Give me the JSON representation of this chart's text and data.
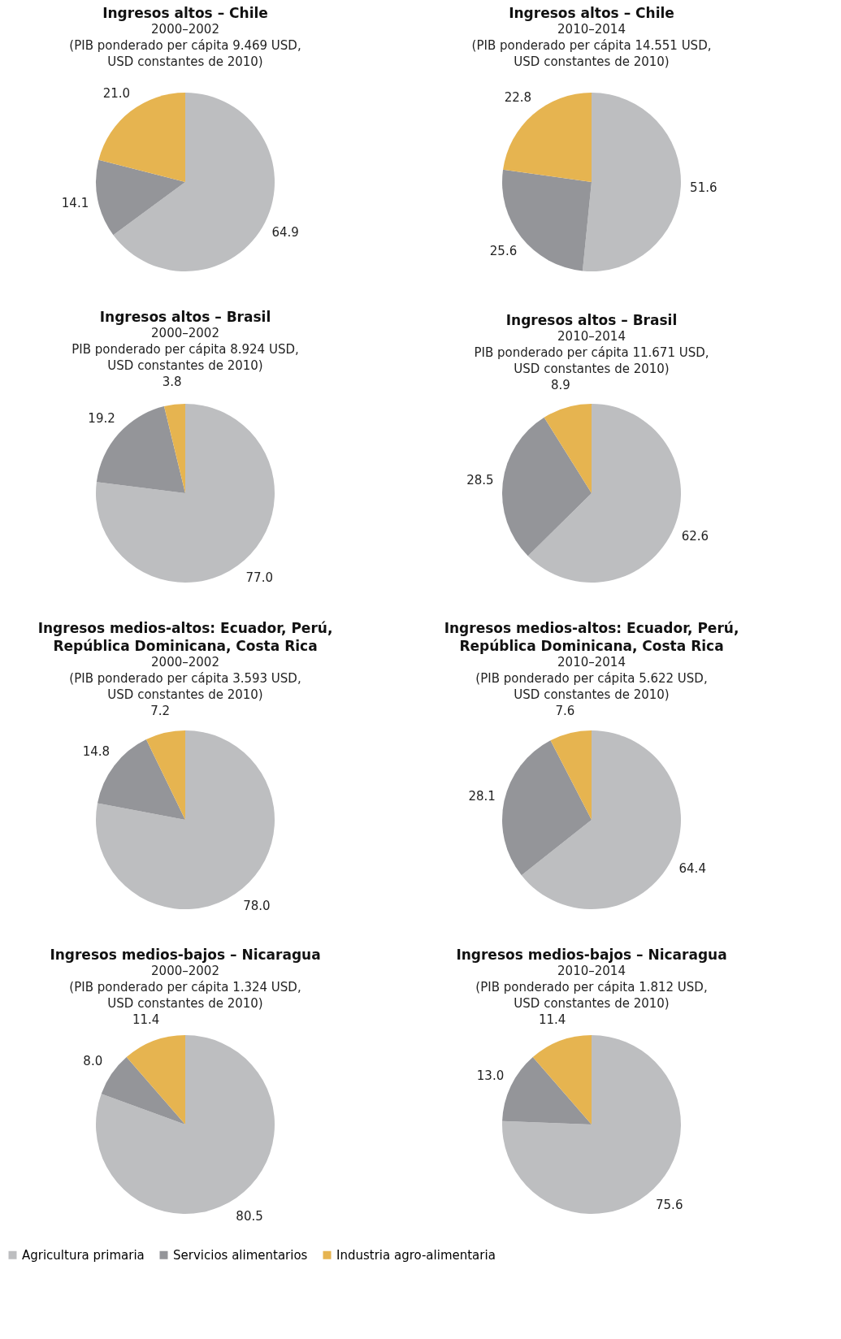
{
  "chart_data": [
    {
      "type": "pie",
      "title": "Ingresos altos – Chile",
      "subtitle": "2000–2002\n(PIB ponderado per cápita 9.469 USD,\nUSD constantes de 2010)",
      "categories": [
        "Agricultura primaria",
        "Servicios alimentarios",
        "Industria agro-alimentaria"
      ],
      "values": [
        64.9,
        14.1,
        21.0
      ],
      "value_labels": [
        "64.9",
        "14.1",
        "21.0"
      ],
      "colors": [
        "#bdbec0",
        "#949599",
        "#e6b450"
      ],
      "data_labels": true,
      "legend": "bottom"
    },
    {
      "type": "pie",
      "title": "Ingresos altos – Chile",
      "subtitle": "2010–2014\n(PIB ponderado per cápita 14.551 USD,\nUSD constantes de 2010)",
      "categories": [
        null,
        null,
        null
      ],
      "values": [
        51.6,
        25.6,
        22.8
      ],
      "value_labels": [
        "51.6",
        "25.6",
        "22.8"
      ],
      "colors": [
        "#bdbec0",
        "#949599",
        "#e6b450"
      ],
      "data_labels": true
    },
    {
      "type": "pie",
      "title": "Ingresos altos – Brasil",
      "subtitle": "2000–2002\nPIB ponderado per cápita 8.924 USD,\nUSD constantes de 2010)",
      "categories": [
        null,
        null,
        null
      ],
      "values": [
        77.0,
        19.2,
        3.8
      ],
      "value_labels": [
        "77.0",
        "19.2",
        "3.8"
      ],
      "colors": [
        "#bdbec0",
        "#949599",
        "#e6b450"
      ],
      "data_labels": true
    },
    {
      "type": "pie",
      "title": "Ingresos altos – Brasil",
      "subtitle": "2010–2014\nPIB ponderado per cápita 11.671 USD,\nUSD constantes de 2010)",
      "categories": [
        null,
        null,
        null
      ],
      "values": [
        62.6,
        28.5,
        8.9
      ],
      "value_labels": [
        "62.6",
        "28.5",
        "8.9"
      ],
      "colors": [
        "#bdbec0",
        "#949599",
        "#e6b450"
      ],
      "data_labels": true
    },
    {
      "type": "pie",
      "title": "Ingresos medios-altos: Ecuador, Perú,\nRepública Dominicana, Costa Rica",
      "subtitle": "2000–2002\n(PIB ponderado per cápita 3.593 USD,\nUSD constantes de 2010)",
      "categories": [
        null,
        null,
        null
      ],
      "values": [
        78.0,
        14.8,
        7.2
      ],
      "value_labels": [
        "78.0",
        "14.8",
        "7.2"
      ],
      "colors": [
        "#bdbec0",
        "#949599",
        "#e6b450"
      ],
      "data_labels": true
    },
    {
      "type": "pie",
      "title": "Ingresos medios-altos: Ecuador, Perú,\nRepública Dominicana, Costa Rica",
      "subtitle": "2010–2014\n(PIB ponderado per cápita 5.622 USD,\nUSD constantes de 2010)",
      "categories": [
        null,
        null,
        null
      ],
      "values": [
        64.4,
        28.1,
        7.6
      ],
      "value_labels": [
        "64.4",
        "28.1",
        "7.6"
      ],
      "colors": [
        "#bdbec0",
        "#949599",
        "#e6b450"
      ],
      "data_labels": true
    },
    {
      "type": "pie",
      "title": "Ingresos medios-bajos – Nicaragua",
      "subtitle": "2000–2002\n(PIB ponderado per cápita 1.324 USD,\nUSD constantes de 2010)",
      "categories": [
        null,
        null,
        null
      ],
      "values": [
        80.5,
        8.0,
        11.4
      ],
      "value_labels": [
        "80.5",
        "8.0",
        "11.4"
      ],
      "colors": [
        "#bdbec0",
        "#949599",
        "#e6b450"
      ],
      "data_labels": true
    },
    {
      "type": "pie",
      "title": "Ingresos medios-bajos – Nicaragua",
      "subtitle": "2010–2014\n(PIB ponderado per cápita 1.812 USD,\nUSD constantes de 2010)",
      "categories": [
        null,
        null,
        null
      ],
      "values": [
        75.6,
        13.0,
        11.4
      ],
      "value_labels": [
        "75.6",
        "13.0",
        "11.4"
      ],
      "colors": [
        "#bdbec0",
        "#949599",
        "#e6b450"
      ],
      "data_labels": true
    }
  ]
}
